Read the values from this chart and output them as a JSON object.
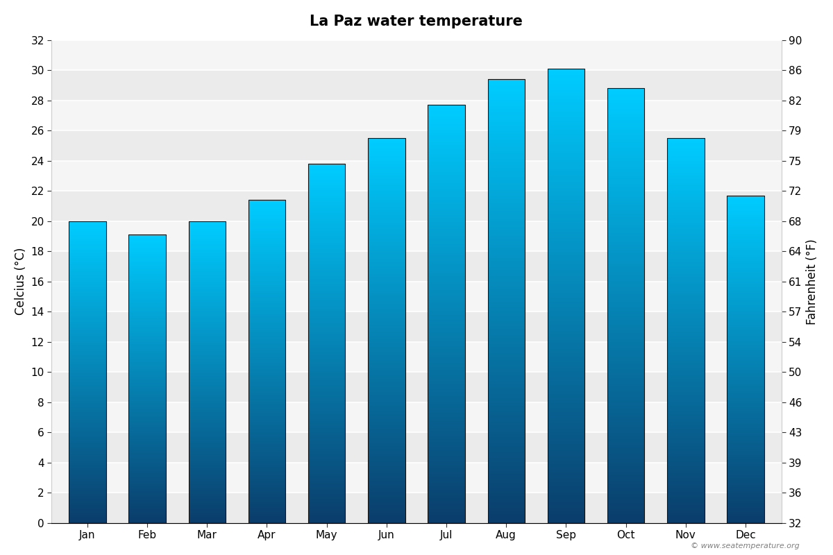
{
  "title": "La Paz water temperature",
  "months": [
    "Jan",
    "Feb",
    "Mar",
    "Apr",
    "May",
    "Jun",
    "Jul",
    "Aug",
    "Sep",
    "Oct",
    "Nov",
    "Dec"
  ],
  "temps_c": [
    20.0,
    19.1,
    20.0,
    21.4,
    23.8,
    25.5,
    27.7,
    29.4,
    30.1,
    28.8,
    25.5,
    21.7
  ],
  "ylabel_left": "Celcius (°C)",
  "ylabel_right": "Fahrenheit (°F)",
  "ylim_c": [
    0,
    32
  ],
  "yticks_c": [
    0,
    2,
    4,
    6,
    8,
    10,
    12,
    14,
    16,
    18,
    20,
    22,
    24,
    26,
    28,
    30,
    32
  ],
  "yticks_f": [
    32,
    36,
    39,
    43,
    46,
    50,
    54,
    57,
    61,
    64,
    68,
    72,
    75,
    79,
    82,
    86,
    90
  ],
  "bar_color_top": "#00CCFF",
  "bar_color_bottom": "#0A3D6B",
  "bar_color_mid": "#1A8FC0",
  "bg_color": "#ffffff",
  "plot_bg_color_light": "#f5f5f5",
  "plot_bg_color_dark": "#e8e8e8",
  "watermark": "© www.seatemperature.org",
  "title_fontsize": 15,
  "tick_fontsize": 11,
  "bar_width": 0.62
}
